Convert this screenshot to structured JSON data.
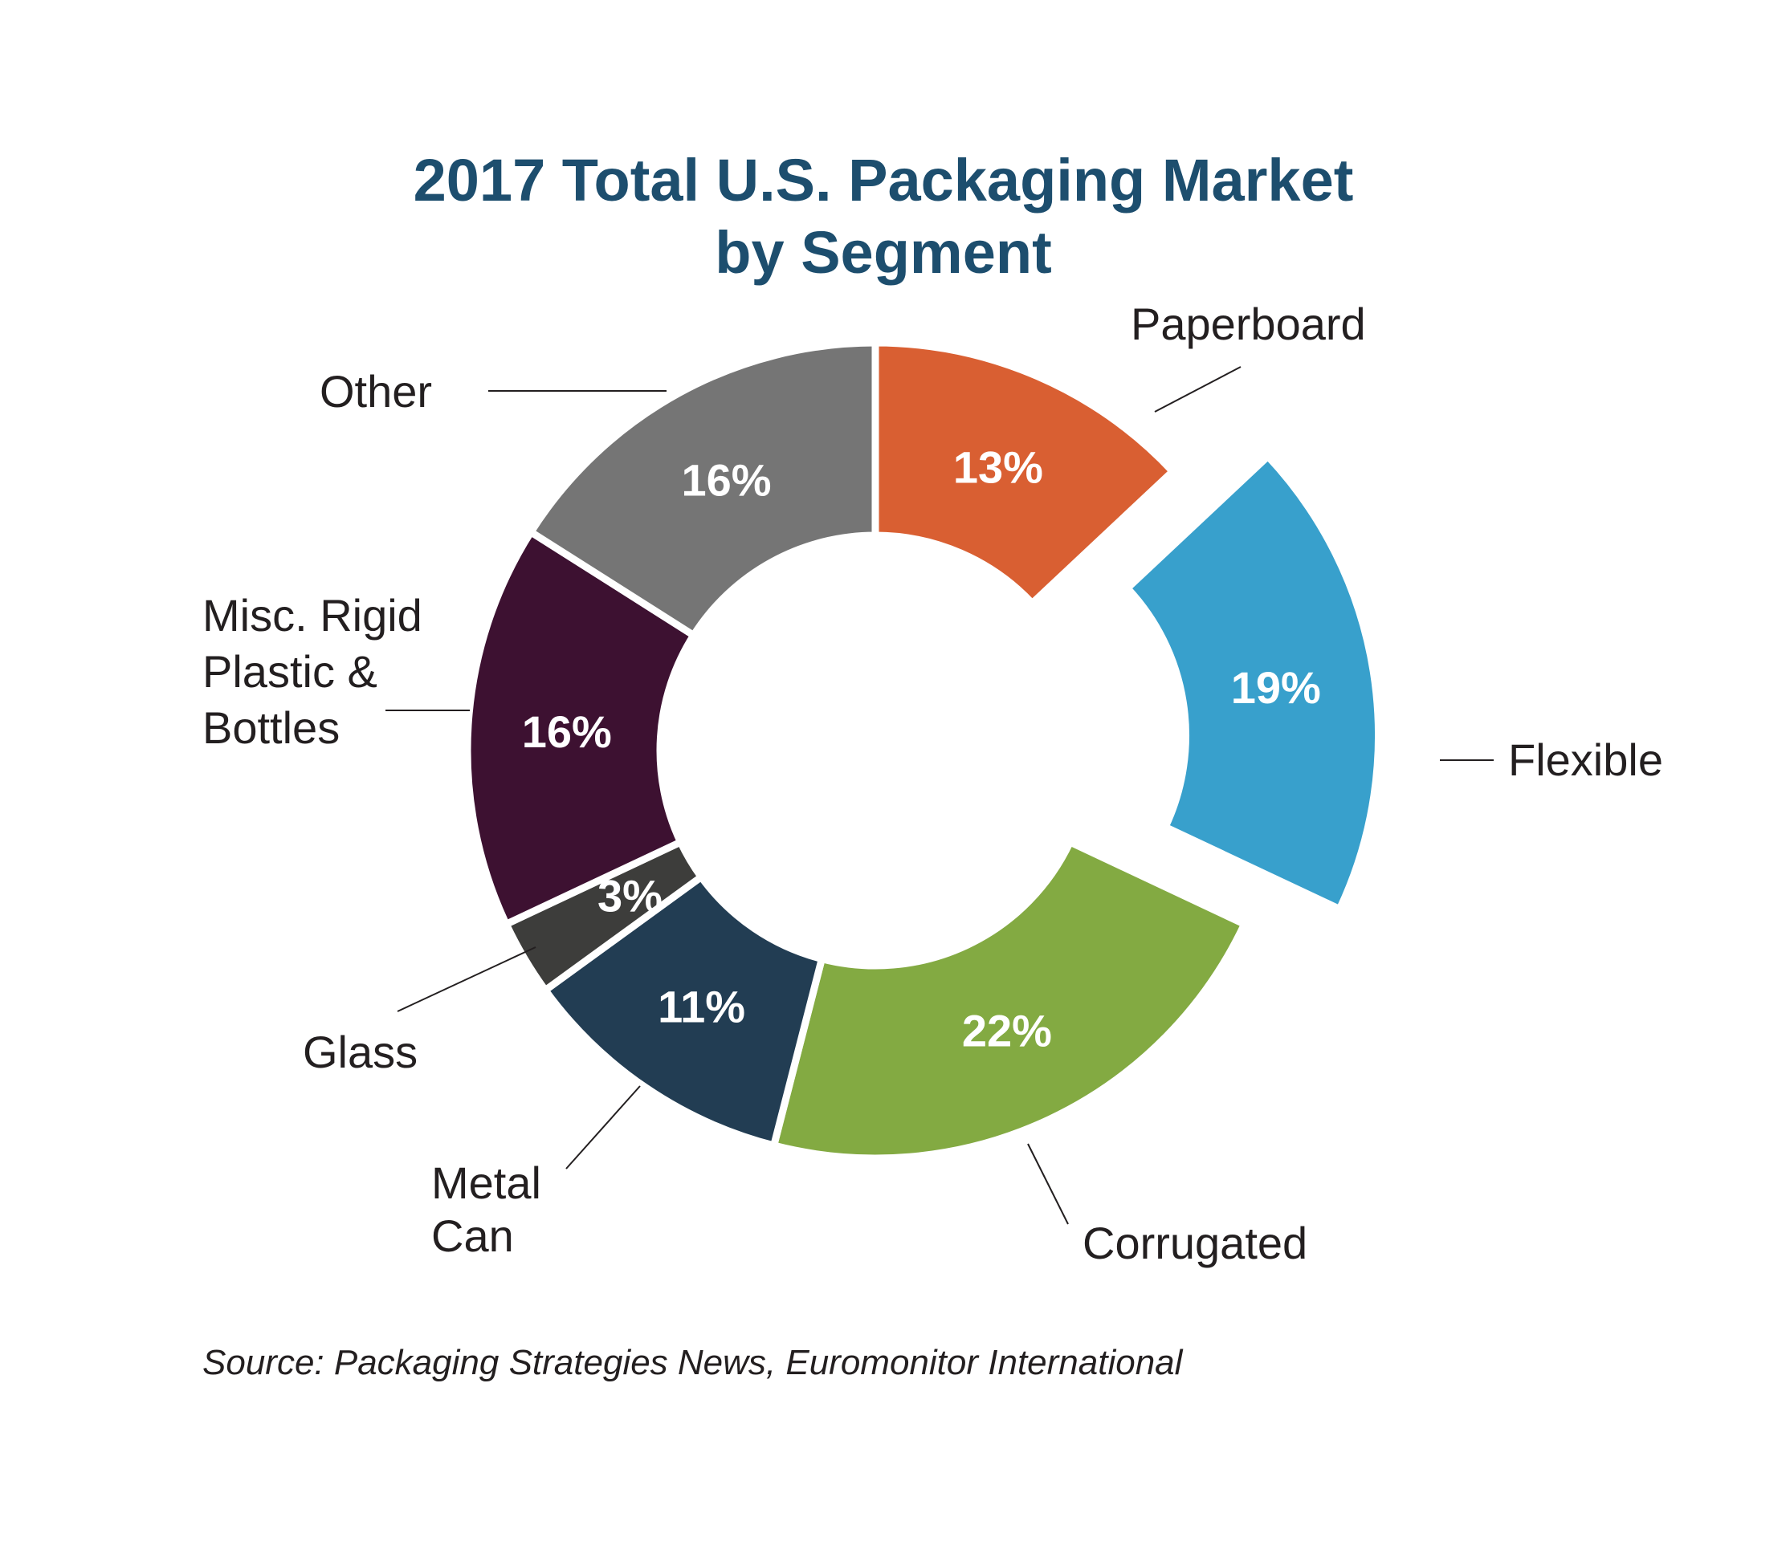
{
  "chart_data": {
    "type": "pie",
    "title": "2017 Total U.S. Packaging Market",
    "subtitle": "by Segment",
    "source": "Source: Packaging Strategies News, Euromonitor International",
    "slices": [
      {
        "name": "Paperboard",
        "value": 13,
        "label": "13%",
        "color": "#d95f32",
        "exploded": false
      },
      {
        "name": "Flexible",
        "value": 19,
        "label": "19%",
        "color": "#38a0cc",
        "exploded": true
      },
      {
        "name": "Corrugated",
        "value": 22,
        "label": "22%",
        "color": "#83aa42",
        "exploded": false
      },
      {
        "name": "Metal Can",
        "value": 11,
        "label": "11%",
        "color": "#223d53",
        "exploded": false
      },
      {
        "name": "Glass",
        "value": 3,
        "label": "3%",
        "color": "#3d3d3b",
        "exploded": false
      },
      {
        "name": "Misc. Rigid Plastic & Bottles",
        "value": 16,
        "label": "16%",
        "color": "#3d1131",
        "exploded": false
      },
      {
        "name": "Other",
        "value": 16,
        "label": "16%",
        "color": "#757575",
        "exploded": false
      }
    ],
    "legend": "none"
  }
}
